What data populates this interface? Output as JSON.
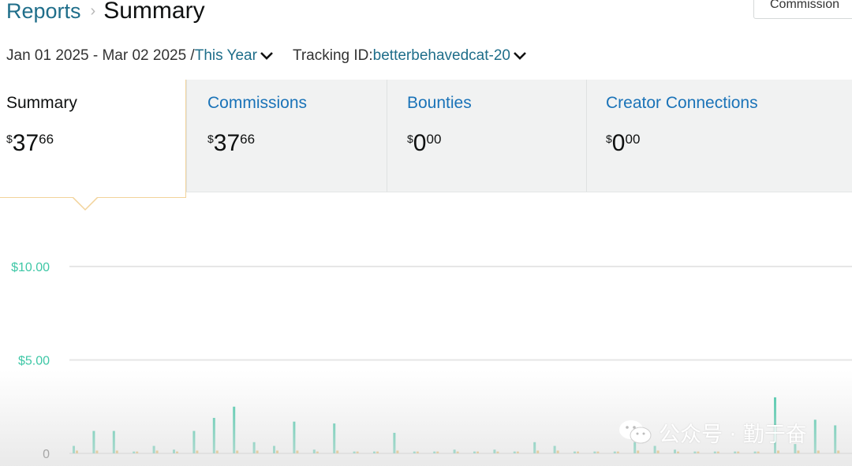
{
  "breadcrumb": {
    "parent": "Reports",
    "current": "Summary"
  },
  "top_button": {
    "label": "Commission"
  },
  "filters": {
    "date_range": "Jan 01 2025 - Mar 02 2025 /",
    "period": "This Year",
    "tracking_label": "Tracking ID:",
    "tracking_id": "betterbehavedcat-20"
  },
  "tabs": [
    {
      "label": "Summary",
      "currency": "$",
      "whole": "37",
      "fraction": "66",
      "active": true
    },
    {
      "label": "Commissions",
      "currency": "$",
      "whole": "37",
      "fraction": "66",
      "active": false
    },
    {
      "label": "Bounties",
      "currency": "$",
      "whole": "0",
      "fraction": "00",
      "active": false
    },
    {
      "label": "Creator Connections",
      "currency": "$",
      "whole": "0",
      "fraction": "00",
      "active": false
    }
  ],
  "colors": {
    "link": "#1f6e8a",
    "tab_link": "#1a73b8",
    "bar_primary": "#3ec7a6",
    "bar_secondary": "#e0a93d",
    "axis_label": "#3ec7a6"
  },
  "chart_data": {
    "type": "bar",
    "ylim": [
      0,
      13
    ],
    "yticks": [
      {
        "value": 10,
        "label": "$10.00"
      },
      {
        "value": 5,
        "label": "$5.00"
      },
      {
        "value": 0,
        "label": "0"
      }
    ],
    "grid": true,
    "series": [
      {
        "values": [
          0.4,
          1.2,
          1.2,
          0.1,
          0.4,
          0.2,
          1.2,
          1.9,
          2.5,
          0.6,
          0.4,
          1.7,
          0.2,
          1.6,
          0.1,
          0.1,
          1.1,
          0.1,
          0.1,
          0.2,
          0.1,
          0.2,
          0.1,
          0.6,
          0.4,
          0.1,
          0.1,
          0.1,
          0.6,
          0.4,
          0.2,
          0.1,
          0.1,
          0.1,
          0.1,
          3.0,
          0.5,
          1.8,
          1.5,
          0.1,
          0.1
        ]
      },
      {
        "values": [
          0.15,
          0.15,
          0.15,
          0.1,
          0.15,
          0.1,
          0.15,
          0.15,
          0.15,
          0.15,
          0.15,
          0.15,
          0.1,
          0.15,
          0.1,
          0.1,
          0.15,
          0.1,
          0.1,
          0.1,
          0.1,
          0.1,
          0.1,
          0.15,
          0.15,
          0.1,
          0.1,
          0.1,
          0.15,
          0.15,
          0.1,
          0.1,
          0.1,
          0.1,
          0.1,
          0.15,
          0.15,
          0.15,
          0.15,
          0.1,
          0.1
        ]
      }
    ]
  },
  "watermark": {
    "text": "公众号 · 勤于奋",
    "icon": "wechat-icon"
  }
}
